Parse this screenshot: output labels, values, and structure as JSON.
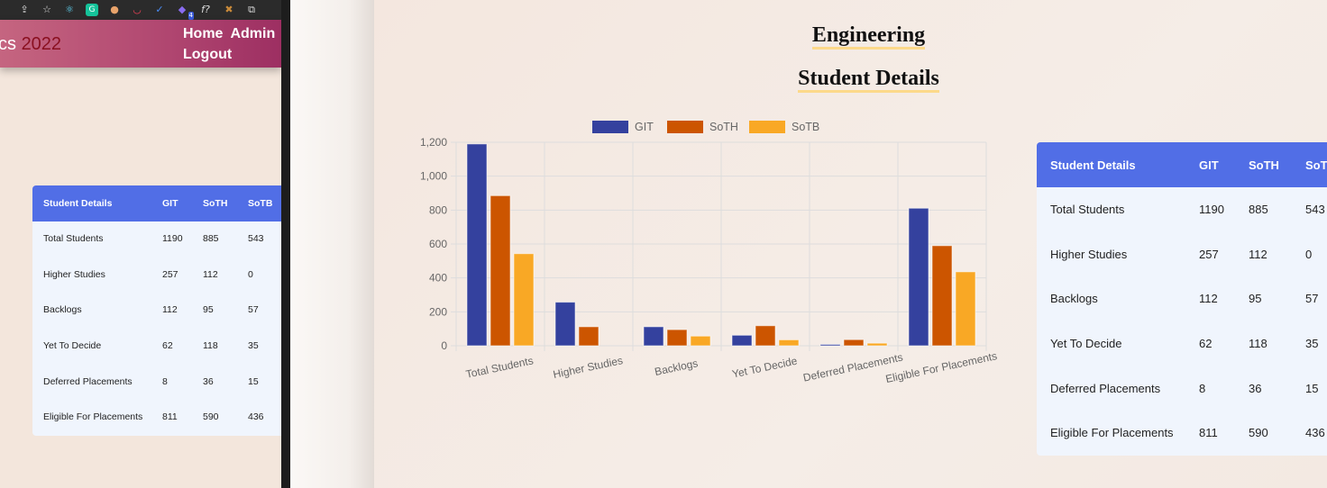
{
  "left_window": {
    "extension_icons": [
      "share-icon",
      "star-icon",
      "react-icon",
      "grammarly-icon",
      "cookie-icon",
      "pocket-icon",
      "check-icon",
      "puzzle-icon",
      "font-icon",
      "wappalyzer-icon",
      "copy-icon"
    ],
    "extension_badge": "4",
    "extension_glyph_f": "f?",
    "brand_prefix": "cs ",
    "brand_year": "2022",
    "nav": {
      "home": "Home",
      "admin": "Admin",
      "logout": "Logout"
    },
    "table": {
      "headers": [
        "Student Details",
        "GIT",
        "SoTH",
        "SoTB"
      ],
      "rows": [
        [
          "Total Students",
          "1190",
          "885",
          "543"
        ],
        [
          "Higher Studies",
          "257",
          "112",
          "0"
        ],
        [
          "Backlogs",
          "112",
          "95",
          "57"
        ],
        [
          "Yet To Decide",
          "62",
          "118",
          "35"
        ],
        [
          "Deferred Placements",
          "8",
          "36",
          "15"
        ],
        [
          "Eligible For Placements",
          "811",
          "590",
          "436"
        ]
      ]
    }
  },
  "main": {
    "department_title": "Engineering",
    "section_title": "Student Details",
    "table": {
      "headers": [
        "Student Details",
        "GIT",
        "SoTH",
        "SoT"
      ],
      "rows": [
        [
          "Total Students",
          "1190",
          "885",
          "543"
        ],
        [
          "Higher Studies",
          "257",
          "112",
          "0"
        ],
        [
          "Backlogs",
          "112",
          "95",
          "57"
        ],
        [
          "Yet To Decide",
          "62",
          "118",
          "35"
        ],
        [
          "Deferred Placements",
          "8",
          "36",
          "15"
        ],
        [
          "Eligible For Placements",
          "811",
          "590",
          "436"
        ]
      ]
    }
  },
  "colors": {
    "git": "#34419e",
    "soth": "#cc5500",
    "sotb": "#f9a825",
    "table_header": "#516ee6"
  },
  "chart_data": {
    "type": "bar",
    "categories": [
      "Total Students",
      "Higher Studies",
      "Backlogs",
      "Yet To Decide",
      "Deferred Placements",
      "Eligible For Placements"
    ],
    "series": [
      {
        "name": "GIT",
        "values": [
          1190,
          257,
          112,
          62,
          8,
          811
        ]
      },
      {
        "name": "SoTH",
        "values": [
          885,
          112,
          95,
          118,
          36,
          590
        ]
      },
      {
        "name": "SoTB",
        "values": [
          543,
          0,
          57,
          35,
          15,
          436
        ]
      }
    ],
    "ylim": [
      0,
      1200
    ],
    "yticks": [
      0,
      200,
      400,
      600,
      800,
      1000,
      1200
    ],
    "ytick_labels": [
      "0",
      "200",
      "400",
      "600",
      "800",
      "1,000",
      "1,200"
    ],
    "legend_position": "top-center",
    "grid": true
  }
}
